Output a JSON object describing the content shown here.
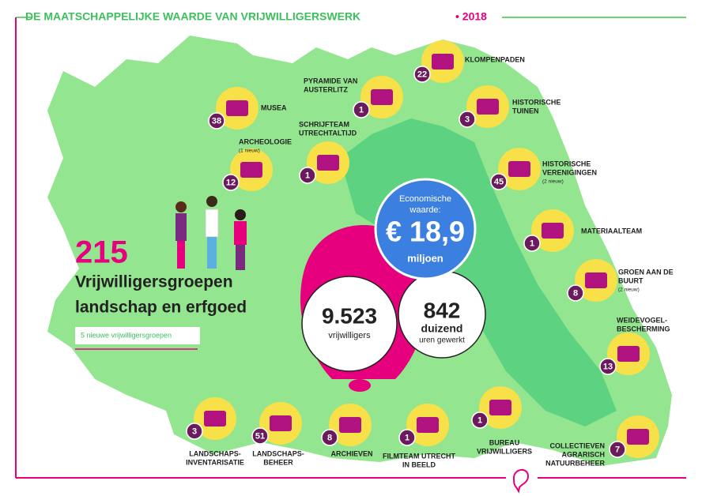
{
  "header": {
    "title": "DE MAATSCHAPPELIJKE WAARDE VAN VRIJWILLIGERSWERK",
    "year": "• 2018"
  },
  "summary": {
    "number": "215",
    "line1": "Vrijwilligersgroepen",
    "line2": "landschap en erfgoed",
    "new_groups": "5 nieuwe vrijwilligersgroepen"
  },
  "economic": {
    "label1": "Economische",
    "label2": "waarde:",
    "amount": "€ 18,9",
    "unit": "miljoen"
  },
  "volunteers": {
    "number": "9.523",
    "label": "vrijwilligers"
  },
  "hours": {
    "number": "842",
    "unit": "duizend",
    "label": "uren gewerkt"
  },
  "groups": [
    {
      "count": "22",
      "label": [
        "KLOMPENPADEN"
      ]
    },
    {
      "count": "1",
      "label": [
        "PYRAMIDE VAN",
        "AUSTERLITZ"
      ]
    },
    {
      "count": "38",
      "label": [
        "MUSEA"
      ]
    },
    {
      "count": "3",
      "label": [
        "HISTORISCHE",
        "TUINEN"
      ]
    },
    {
      "count": "1",
      "label": [
        "SCHRIJFTEAM",
        "UTRECHTALTIJD"
      ]
    },
    {
      "count": "12",
      "label": [
        "ARCHEOLOGIE"
      ],
      "note": "(1 nieuw)"
    },
    {
      "count": "45",
      "label": [
        "HISTORISCHE",
        "VERENIGINGEN"
      ],
      "note": "(2 nieuw)"
    },
    {
      "count": "1",
      "label": [
        "MATERIAALTEAM"
      ]
    },
    {
      "count": "8",
      "label": [
        "GROEN AAN DE",
        "BUURT"
      ],
      "note": "(2 nieuw)"
    },
    {
      "count": "13",
      "label": [
        "WEIDEVOGEL-",
        "BESCHERMING"
      ]
    },
    {
      "count": "3",
      "label": [
        "LANDSCHAPS-",
        "INVENTARISATIE"
      ]
    },
    {
      "count": "51",
      "label": [
        "LANDSCHAPS-",
        "BEHEER"
      ]
    },
    {
      "count": "8",
      "label": [
        "ARCHIEVEN"
      ]
    },
    {
      "count": "1",
      "label": [
        "FILMTEAM UTRECHT",
        "IN BEELD"
      ]
    },
    {
      "count": "1",
      "label": [
        "BUREAU",
        "VRIJWILLIGERS"
      ]
    },
    {
      "count": "7",
      "label": [
        "COLLECTIEVEN",
        "AGRARISCH",
        "NATUURBEHEER"
      ]
    }
  ]
}
